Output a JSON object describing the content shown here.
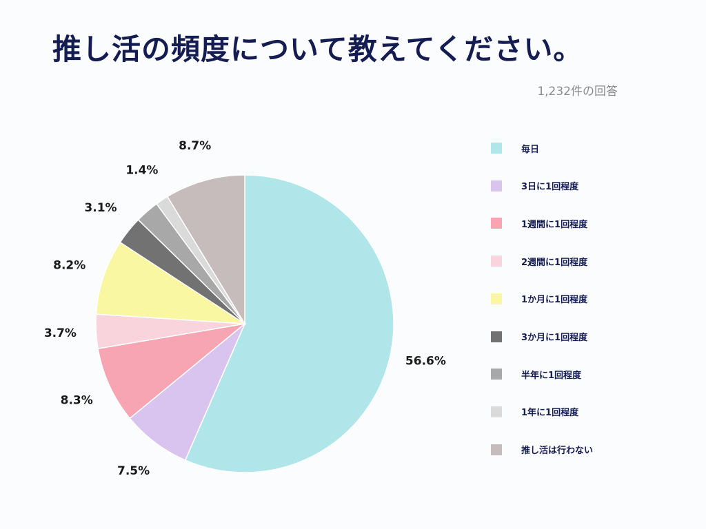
{
  "title": "推し活の頻度について教えてください。",
  "subtitle": "1,232件の回答",
  "chart_data": {
    "type": "pie",
    "title": "推し活の頻度について教えてください。",
    "subtitle": "1,232件の回答",
    "legend_position": "right",
    "slices": [
      {
        "label": "毎日",
        "value": 56.6,
        "display": "56.6%",
        "color": "#b0e6e9"
      },
      {
        "label": "3日に1回程度",
        "value": 7.5,
        "display": "7.5%",
        "color": "#d9c3ef"
      },
      {
        "label": "1週間に1回程度",
        "value": 8.3,
        "display": "8.3%",
        "color": "#f7a5b3"
      },
      {
        "label": "2週間に1回程度",
        "value": 3.7,
        "display": "3.7%",
        "color": "#fad4dc"
      },
      {
        "label": "1か月に1回程度",
        "value": 8.2,
        "display": "8.2%",
        "color": "#faf7a2"
      },
      {
        "label": "3か月に1回程度",
        "value": 3.1,
        "display": "3.1%",
        "color": "#727272"
      },
      {
        "label": "半年に1回程度",
        "value": 2.6,
        "display": "",
        "color": "#a8a8a8"
      },
      {
        "label": "1年に1回程度",
        "value": 1.4,
        "display": "1.4%",
        "color": "#dadada"
      },
      {
        "label": "推し活は行わない",
        "value": 8.7,
        "display": "8.7%",
        "color": "#c6bcbc"
      }
    ]
  }
}
